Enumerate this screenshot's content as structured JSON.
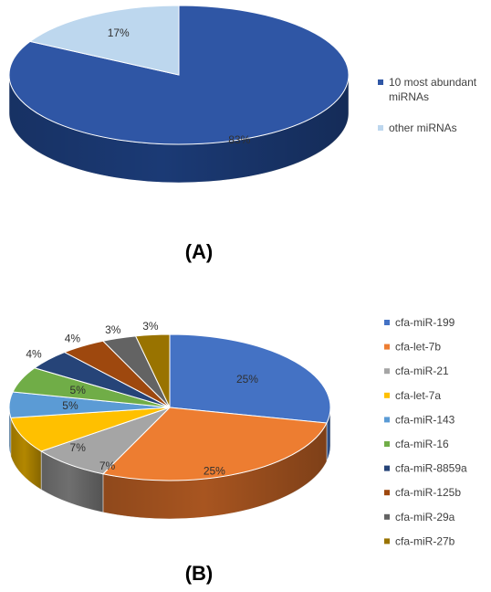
{
  "chart_data": [
    {
      "type": "pie",
      "panel_label": "(A)",
      "style": "3d",
      "categories": [
        "10 most abundant miRNAs",
        "other miRNAs"
      ],
      "values": [
        83,
        17
      ],
      "data_labels": [
        "83%",
        "17%"
      ],
      "legend_lines": [
        [
          "10 most abundant",
          "miRNAs"
        ],
        [
          "other miRNAs"
        ]
      ],
      "legend_position": "right",
      "colors": [
        "#2f56a5",
        "#bdd7ee"
      ],
      "dark_colors": [
        "#1b3a75",
        "#8ea9c2"
      ]
    },
    {
      "type": "pie",
      "panel_label": "(B)",
      "style": "3d",
      "categories": [
        "cfa-miR-199",
        "cfa-let-7b",
        "cfa-miR-21",
        "cfa-let-7a",
        "cfa-miR-143",
        "cfa-miR-16",
        "cfa-miR-8859a",
        "cfa-miR-125b",
        "cfa-miR-29a",
        "cfa-miR-27b"
      ],
      "values": [
        25,
        25,
        7,
        7,
        5,
        5,
        4,
        4,
        3,
        3
      ],
      "data_labels": [
        "25%",
        "25%",
        "7%",
        "7%",
        "5%",
        "5%",
        "4%",
        "4%",
        "3%",
        "3%"
      ],
      "legend_position": "right",
      "colors": [
        "#4472c4",
        "#ed7d31",
        "#a5a5a5",
        "#ffc000",
        "#5b9bd5",
        "#70ad47",
        "#264478",
        "#9e480e",
        "#636363",
        "#997300"
      ],
      "dark_colors": [
        "#2f508a",
        "#a85520",
        "#6f6f6f",
        "#b38700",
        "#3e6d98",
        "#4c7a30",
        "#16294a",
        "#6a2f08",
        "#404040",
        "#6b5000"
      ]
    }
  ]
}
